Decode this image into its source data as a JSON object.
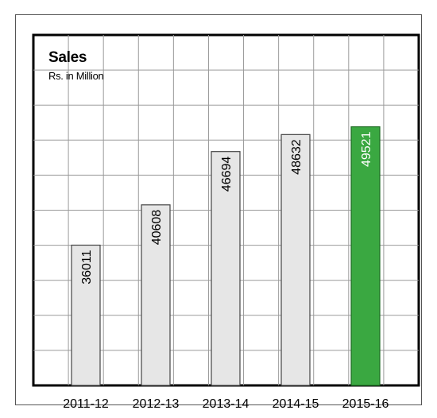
{
  "chart_data": {
    "type": "bar",
    "title": "Sales",
    "subtitle": "Rs. in Million",
    "xlabel": "",
    "ylabel": "",
    "categories": [
      "2011-12",
      "2012-13",
      "2013-14",
      "2014-15",
      "2015-16"
    ],
    "values": [
      36011,
      40608,
      46694,
      48632,
      49521
    ],
    "ylim": [
      20000,
      60000
    ],
    "grid": true,
    "highlight_index": 4,
    "colors": {
      "bar": "#e6e6e6",
      "bar_border": "#444444",
      "highlight": "#3aa841",
      "highlight_border": "#1d6a22",
      "grid": "#9a9a9a",
      "label_text": "#000000",
      "highlight_label_text": "#ffffff"
    }
  }
}
